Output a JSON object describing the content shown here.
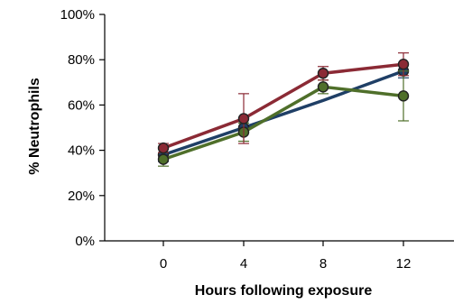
{
  "chart_data": {
    "type": "line",
    "xlabel": "Hours following exposure",
    "ylabel": "% Neutrophils",
    "x": [
      0,
      4,
      8,
      12
    ],
    "x_tick_labels": [
      "0",
      "4",
      "8",
      "12"
    ],
    "ylim": [
      0,
      100
    ],
    "y_ticks": [
      0,
      20,
      40,
      60,
      80,
      100
    ],
    "y_tick_labels": [
      "0%",
      "20%",
      "40%",
      "60%",
      "80%",
      "100%"
    ],
    "grid": false,
    "series": [
      {
        "color": "#1f3f66",
        "values": [
          38,
          50,
          62,
          75
        ],
        "markers": [
          true,
          true,
          false,
          true
        ],
        "errors": [
          3,
          2,
          0,
          3
        ]
      },
      {
        "color": "#4f6f2a",
        "values": [
          36,
          48,
          68,
          64
        ],
        "markers": [
          true,
          true,
          true,
          true
        ],
        "errors": [
          3,
          4,
          3,
          11
        ]
      },
      {
        "color": "#8b2a35",
        "values": [
          41,
          54,
          74,
          78
        ],
        "markers": [
          true,
          true,
          true,
          true
        ],
        "errors": [
          2,
          11,
          3,
          5
        ]
      }
    ]
  }
}
